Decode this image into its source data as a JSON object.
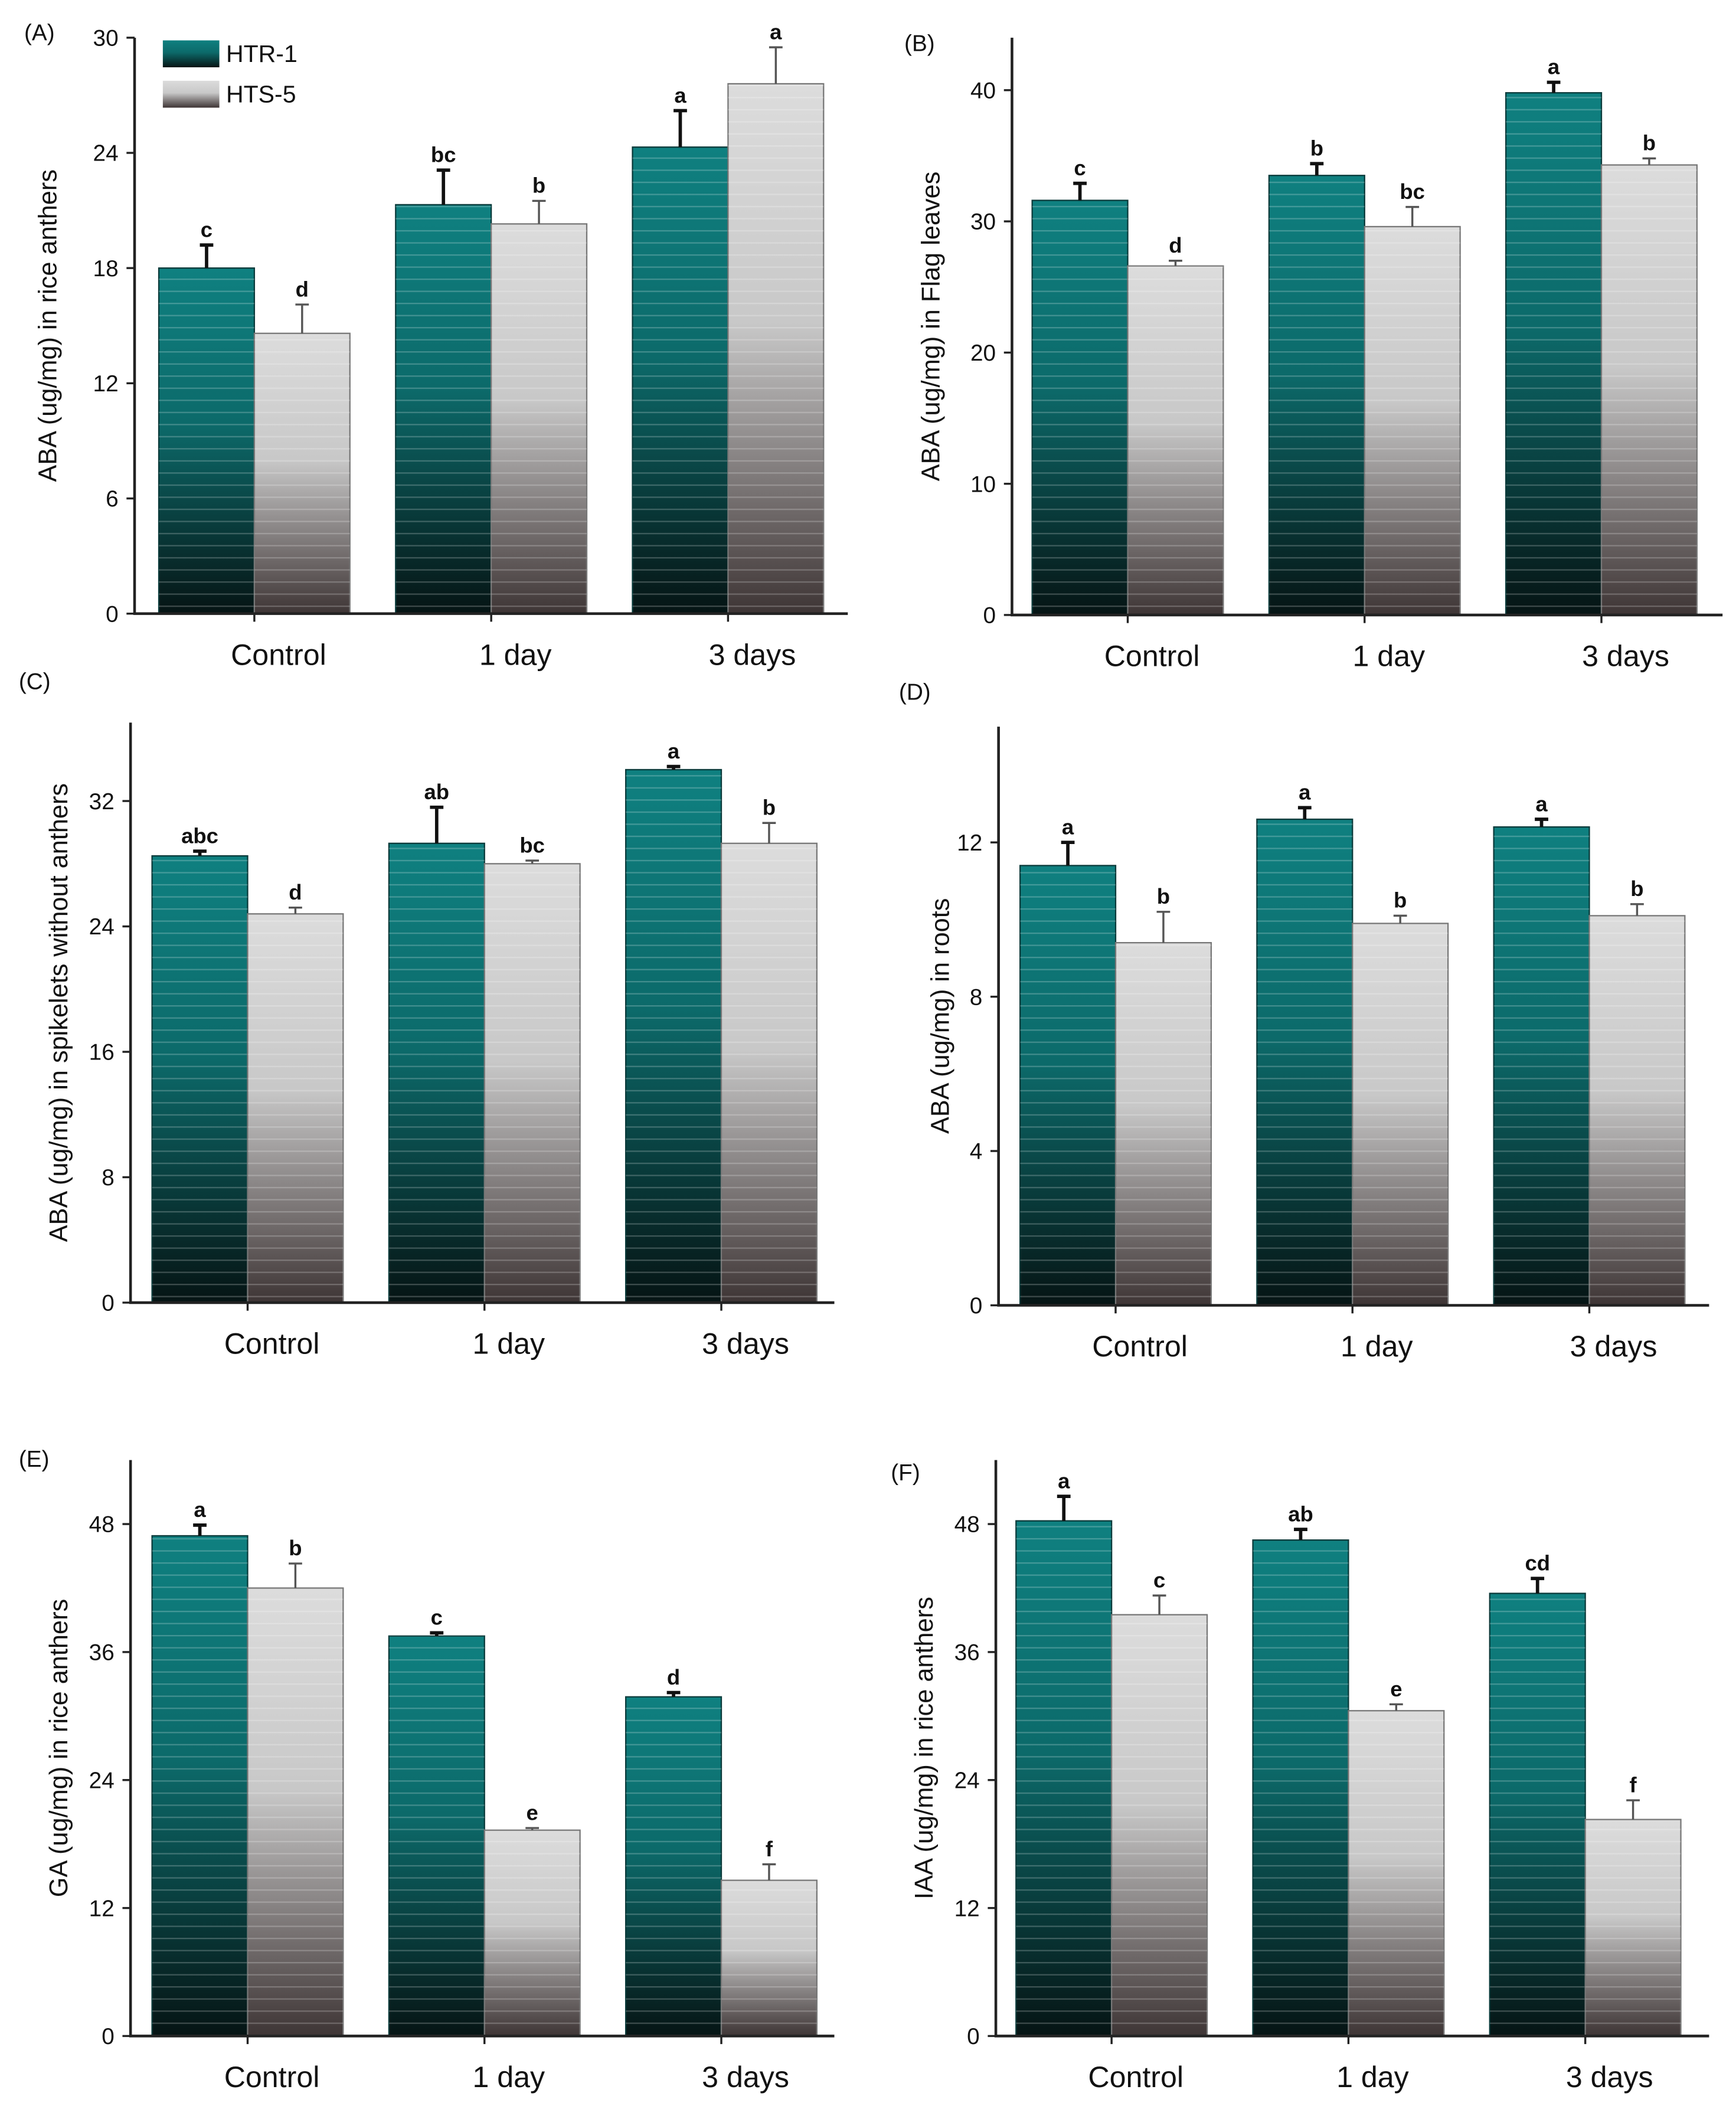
{
  "legend": {
    "series": [
      "HTR-1",
      "HTS-5"
    ]
  },
  "colors": {
    "htr_top": "#0f8080",
    "htr_bottom": "#061414",
    "hts_top": "#dcdcdc",
    "hts_bottom": "#3e3535"
  },
  "chart_data": [
    {
      "type": "bar",
      "panel": "(A)",
      "ylabel": "ABA (ug/mg) in rice anthers",
      "categories": [
        "Control",
        "1 day",
        "3 days"
      ],
      "ylim": [
        0,
        30
      ],
      "yticks": [
        0,
        6,
        12,
        18,
        24,
        30
      ],
      "series": [
        {
          "name": "HTR-1",
          "values": [
            18.0,
            21.3,
            24.3
          ],
          "errors": [
            1.2,
            1.8,
            1.9
          ],
          "letters": [
            "c",
            "bc",
            "a"
          ]
        },
        {
          "name": "HTS-5",
          "values": [
            14.6,
            20.3,
            27.6
          ],
          "errors": [
            1.5,
            1.2,
            1.9
          ],
          "letters": [
            "d",
            "b",
            "a"
          ]
        }
      ]
    },
    {
      "type": "bar",
      "panel": "(B)",
      "ylabel": "ABA (ug/mg) in Flag leaves",
      "categories": [
        "Control",
        "1 day",
        "3 days"
      ],
      "ylim": [
        0,
        44
      ],
      "yticks": [
        0,
        10,
        20,
        30,
        40
      ],
      "series": [
        {
          "name": "HTR-1",
          "values": [
            31.6,
            33.5,
            39.8
          ],
          "errors": [
            1.3,
            0.9,
            0.8
          ],
          "letters": [
            "c",
            "b",
            "a"
          ]
        },
        {
          "name": "HTS-5",
          "values": [
            26.6,
            29.6,
            34.3
          ],
          "errors": [
            0.4,
            1.5,
            0.5
          ],
          "letters": [
            "d",
            "bc",
            "b"
          ]
        }
      ]
    },
    {
      "type": "bar",
      "panel": "(C)",
      "ylabel": "ABA (ug/mg) in spikelets without anthers",
      "categories": [
        "Control",
        "1 day",
        "3 days"
      ],
      "ylim": [
        0,
        37
      ],
      "yticks": [
        0,
        8,
        16,
        24,
        32
      ],
      "series": [
        {
          "name": "HTR-1",
          "values": [
            28.5,
            29.3,
            34.0
          ],
          "errors": [
            0.3,
            2.3,
            0.2
          ],
          "letters": [
            "abc",
            "ab",
            "a"
          ]
        },
        {
          "name": "HTS-5",
          "values": [
            24.8,
            28.0,
            29.3
          ],
          "errors": [
            0.4,
            0.2,
            1.3
          ],
          "letters": [
            "d",
            "bc",
            "b"
          ]
        }
      ]
    },
    {
      "type": "bar",
      "panel": "(D)",
      "ylabel": "ABA (ug/mg) in roots",
      "categories": [
        "Control",
        "1 day",
        "3 days"
      ],
      "ylim": [
        0,
        15
      ],
      "yticks": [
        0,
        4,
        8,
        12
      ],
      "series": [
        {
          "name": "HTR-1",
          "values": [
            11.4,
            12.6,
            12.4
          ],
          "errors": [
            0.6,
            0.3,
            0.2
          ],
          "letters": [
            "a",
            "a",
            "a"
          ]
        },
        {
          "name": "HTS-5",
          "values": [
            9.4,
            9.9,
            10.1
          ],
          "errors": [
            0.8,
            0.2,
            0.3
          ],
          "letters": [
            "b",
            "b",
            "b"
          ]
        }
      ]
    },
    {
      "type": "bar",
      "panel": "(E)",
      "ylabel": "GA (ug/mg) in rice anthers",
      "categories": [
        "Control",
        "1 day",
        "3 days"
      ],
      "ylim": [
        0,
        54
      ],
      "yticks": [
        0,
        12,
        24,
        36,
        48
      ],
      "series": [
        {
          "name": "HTR-1",
          "values": [
            46.9,
            37.5,
            31.8
          ],
          "errors": [
            1.0,
            0.3,
            0.4
          ],
          "letters": [
            "a",
            "c",
            "d"
          ]
        },
        {
          "name": "HTS-5",
          "values": [
            42.0,
            19.3,
            14.6
          ],
          "errors": [
            2.3,
            0.2,
            1.5
          ],
          "letters": [
            "b",
            "e",
            "f"
          ]
        }
      ]
    },
    {
      "type": "bar",
      "panel": "(F)",
      "ylabel": "IAA (ug/mg) in rice anthers",
      "categories": [
        "Control",
        "1 day",
        "3 days"
      ],
      "ylim": [
        0,
        54
      ],
      "yticks": [
        0,
        12,
        24,
        36,
        48
      ],
      "series": [
        {
          "name": "HTR-1",
          "values": [
            48.3,
            46.5,
            41.5
          ],
          "errors": [
            2.3,
            1.0,
            1.4
          ],
          "letters": [
            "a",
            "ab",
            "cd"
          ]
        },
        {
          "name": "HTS-5",
          "values": [
            39.5,
            30.5,
            20.3
          ],
          "errors": [
            1.8,
            0.6,
            1.8
          ],
          "letters": [
            "c",
            "e",
            "f"
          ]
        }
      ]
    }
  ]
}
